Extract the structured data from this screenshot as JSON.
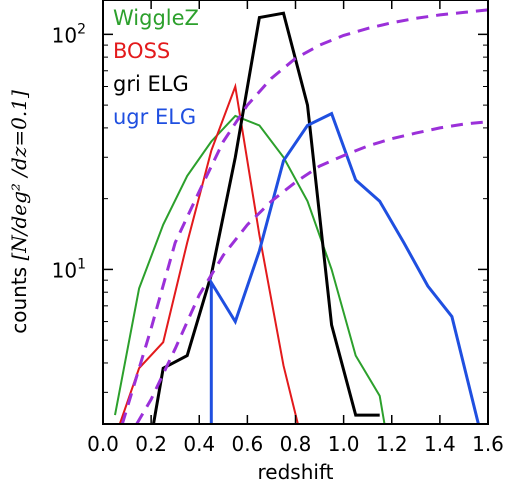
{
  "chart_data": {
    "type": "line",
    "xlabel": "redshift",
    "ylabel_prefix": "counts ",
    "ylabel_math": "[N/deg² /dz=0.1]",
    "xlim": [
      0.0,
      1.6
    ],
    "ylim": [
      2.2,
      140
    ],
    "yscale": "log",
    "x_ticks": [
      0.0,
      0.2,
      0.4,
      0.6,
      0.8,
      1.0,
      1.2,
      1.4,
      1.6
    ],
    "x_tick_labels": [
      "0.0",
      "0.2",
      "0.4",
      "0.6",
      "0.8",
      "1.0",
      "1.2",
      "1.4",
      "1.6"
    ],
    "y_major_ticks": [
      {
        "value": 10,
        "base": "10",
        "exp": "1"
      },
      {
        "value": 100,
        "base": "10",
        "exp": "2"
      }
    ],
    "legend_position": "top-left",
    "series": [
      {
        "name": "WiggleZ",
        "color": "#2ca02c",
        "width": 2,
        "x": [
          0.05,
          0.15,
          0.25,
          0.35,
          0.45,
          0.55,
          0.65,
          0.75,
          0.85,
          0.95,
          1.05,
          1.15,
          1.17
        ],
        "y": [
          2.4,
          8.3,
          15.5,
          25,
          35,
          45,
          41,
          30,
          19.5,
          10,
          4.3,
          2.9,
          2.2
        ]
      },
      {
        "name": "BOSS",
        "color": "#e31a1c",
        "width": 2,
        "x": [
          0.07,
          0.15,
          0.25,
          0.35,
          0.45,
          0.55,
          0.65,
          0.75,
          0.81
        ],
        "y": [
          2.2,
          3.8,
          4.9,
          13,
          32,
          60,
          14,
          3.9,
          2.2
        ]
      },
      {
        "name": "gri ELG",
        "color": "#000000",
        "width": 3,
        "x": [
          0.21,
          0.25,
          0.35,
          0.45,
          0.55,
          0.65,
          0.75,
          0.85,
          0.95,
          1.05,
          1.15
        ],
        "y": [
          2.2,
          3.8,
          4.3,
          9.5,
          30,
          118,
          123,
          50,
          5.8,
          2.4,
          2.4
        ]
      },
      {
        "name": "ugr ELG",
        "color": "#1f4fe0",
        "width": 3,
        "x": [
          0.45,
          0.45,
          0.55,
          0.65,
          0.75,
          0.85,
          0.95,
          1.05,
          1.15,
          1.25,
          1.35,
          1.45,
          1.56
        ],
        "y": [
          2.2,
          8.8,
          6.0,
          12,
          29,
          41,
          46,
          24,
          19.5,
          13,
          8.5,
          6.3,
          2.2
        ]
      },
      {
        "name": "",
        "color": "#9b30d9",
        "width": 3,
        "dashed": true,
        "x": [
          0.08,
          0.12,
          0.2,
          0.3,
          0.4,
          0.5,
          0.6,
          0.7,
          0.8,
          0.9,
          1.0,
          1.1,
          1.2,
          1.3,
          1.4,
          1.5,
          1.6
        ],
        "y": [
          2.2,
          3.0,
          5.6,
          13,
          21.5,
          35,
          50,
          65,
          79,
          90,
          99,
          106,
          112,
          117,
          121,
          124,
          127
        ]
      },
      {
        "name": "",
        "color": "#9b30d9",
        "width": 3,
        "dashed": true,
        "x": [
          0.14,
          0.2,
          0.3,
          0.4,
          0.5,
          0.6,
          0.7,
          0.8,
          0.9,
          1.0,
          1.1,
          1.2,
          1.3,
          1.4,
          1.5,
          1.6
        ],
        "y": [
          2.2,
          2.8,
          4.6,
          7.8,
          11.5,
          15.5,
          19.5,
          23.5,
          27.5,
          30.5,
          33.5,
          36,
          38,
          40,
          41.5,
          42.5
        ]
      }
    ]
  }
}
